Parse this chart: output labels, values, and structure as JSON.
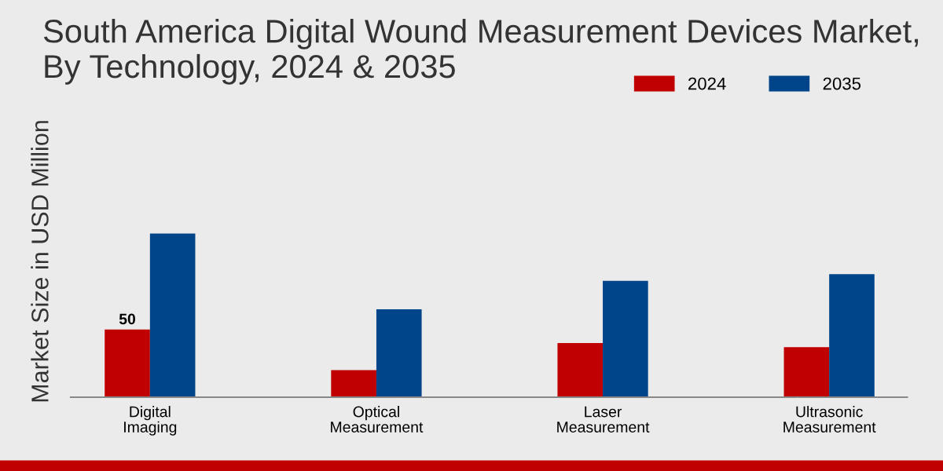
{
  "chart_data": {
    "type": "bar",
    "title": "South America Digital Wound Measurement Devices Market, By Technology, 2024 & 2035",
    "ylabel": "Market Size in USD Million",
    "categories": [
      "Digital\nImaging",
      "Optical\nMeasurement",
      "Laser\nMeasurement",
      "Ultrasonic\nMeasurement"
    ],
    "series": [
      {
        "name": "2024",
        "color": "#c00000",
        "values": [
          50,
          20,
          40,
          37
        ],
        "value_labels": [
          "50",
          null,
          null,
          null
        ]
      },
      {
        "name": "2035",
        "color": "#00448a",
        "values": [
          121,
          65,
          86,
          91
        ]
      }
    ],
    "legend": "top right",
    "grid": false
  }
}
